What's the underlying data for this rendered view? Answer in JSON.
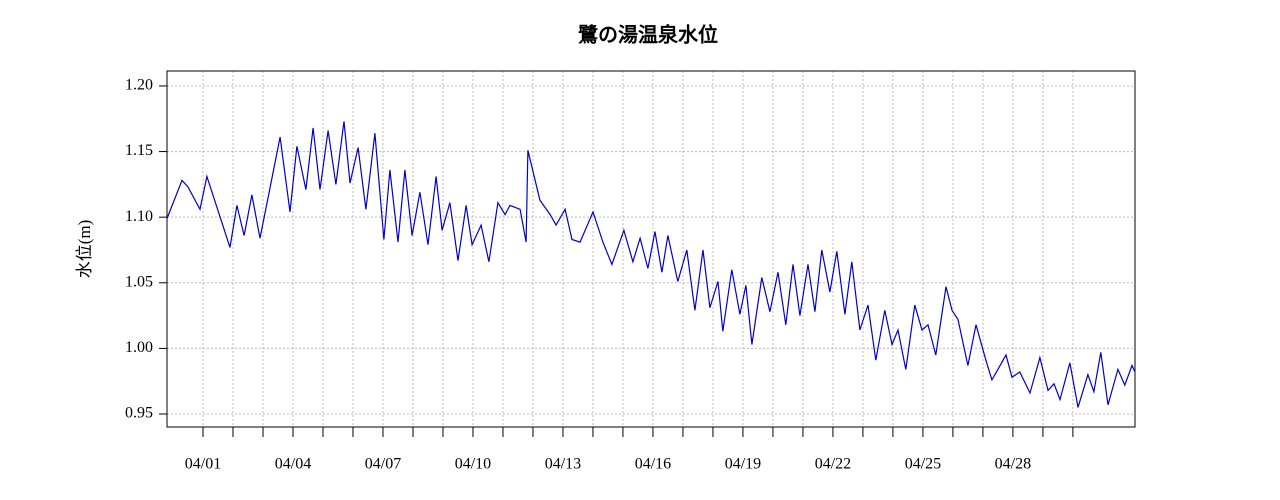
{
  "chart_data": {
    "type": "line",
    "title": "鷺の湯温泉水位",
    "ylabel": "水位(m)",
    "color": "#0000cc",
    "grid": true,
    "xlim": [
      -0.2,
      32.07
    ],
    "ylim": [
      0.9401,
      1.2114
    ],
    "xticks": [
      {
        "value": 1,
        "label": "04/01"
      },
      {
        "value": 4,
        "label": "04/04"
      },
      {
        "value": 7,
        "label": "04/07"
      },
      {
        "value": 10,
        "label": "04/10"
      },
      {
        "value": 13,
        "label": "04/13"
      },
      {
        "value": 16,
        "label": "04/16"
      },
      {
        "value": 19,
        "label": "04/19"
      },
      {
        "value": 22,
        "label": "04/22"
      },
      {
        "value": 25,
        "label": "04/25"
      },
      {
        "value": 28,
        "label": "04/28"
      }
    ],
    "xminorticks": [
      2,
      3,
      5,
      6,
      8,
      9,
      11,
      12,
      14,
      15,
      17,
      18,
      20,
      21,
      23,
      24,
      26,
      27,
      29,
      30
    ],
    "yticks": [
      0.95,
      {
        "value": 1,
        "label": "1.00"
      },
      1.05,
      {
        "value": 1.1,
        "label": "1.10"
      },
      1.15,
      {
        "value": 1.2,
        "label": "1.20"
      }
    ],
    "x": [
      -0.2,
      0.3,
      0.5,
      0.9,
      1.13,
      1.9,
      2.13,
      2.37,
      2.63,
      2.9,
      3.57,
      3.9,
      4.13,
      4.43,
      4.67,
      4.9,
      5.17,
      5.43,
      5.7,
      5.9,
      6.17,
      6.43,
      6.73,
      7.03,
      7.23,
      7.5,
      7.73,
      7.97,
      8.23,
      8.5,
      8.77,
      8.97,
      9.23,
      9.5,
      9.77,
      9.97,
      10.27,
      10.53,
      10.83,
      11.07,
      11.23,
      11.57,
      11.77,
      11.83,
      12.23,
      12.57,
      12.77,
      13.07,
      13.3,
      13.57,
      14.0,
      14.33,
      14.63,
      15.03,
      15.33,
      15.57,
      15.83,
      16.07,
      16.3,
      16.5,
      16.83,
      17.13,
      17.4,
      17.67,
      17.9,
      18.17,
      18.33,
      18.63,
      18.9,
      19.1,
      19.3,
      19.63,
      19.9,
      20.17,
      20.43,
      20.67,
      20.9,
      21.17,
      21.4,
      21.63,
      21.9,
      22.13,
      22.4,
      22.63,
      22.9,
      23.17,
      23.43,
      23.73,
      23.97,
      24.17,
      24.43,
      24.73,
      24.97,
      25.17,
      25.43,
      25.77,
      25.97,
      26.17,
      26.5,
      26.77,
      27.1,
      27.3,
      27.5,
      27.77,
      27.97,
      28.23,
      28.57,
      28.9,
      29.17,
      29.37,
      29.57,
      29.9,
      30.17,
      30.5,
      30.7,
      30.93,
      31.17,
      31.5,
      31.73,
      31.97,
      32.07
    ],
    "values": [
      1.099,
      1.128,
      1.123,
      1.106,
      1.131,
      1.077,
      1.109,
      1.086,
      1.117,
      1.084,
      1.161,
      1.104,
      1.154,
      1.121,
      1.168,
      1.121,
      1.166,
      1.125,
      1.173,
      1.126,
      1.153,
      1.106,
      1.164,
      1.083,
      1.136,
      1.081,
      1.136,
      1.086,
      1.119,
      1.079,
      1.131,
      1.09,
      1.111,
      1.067,
      1.109,
      1.079,
      1.094,
      1.066,
      1.111,
      1.102,
      1.109,
      1.106,
      1.081,
      1.151,
      1.113,
      1.102,
      1.094,
      1.106,
      1.083,
      1.081,
      1.104,
      1.081,
      1.064,
      1.09,
      1.066,
      1.084,
      1.061,
      1.089,
      1.058,
      1.086,
      1.051,
      1.075,
      1.029,
      1.075,
      1.031,
      1.051,
      1.013,
      1.06,
      1.026,
      1.048,
      1.003,
      1.054,
      1.028,
      1.058,
      1.018,
      1.064,
      1.025,
      1.064,
      1.028,
      1.075,
      1.043,
      1.074,
      1.026,
      1.066,
      1.014,
      1.033,
      0.991,
      1.029,
      1.003,
      1.014,
      0.984,
      1.033,
      1.014,
      1.018,
      0.995,
      1.047,
      1.029,
      1.022,
      0.987,
      1.018,
      0.991,
      0.976,
      0.984,
      0.995,
      0.978,
      0.982,
      0.966,
      0.993,
      0.968,
      0.973,
      0.961,
      0.989,
      0.955,
      0.98,
      0.967,
      0.997,
      0.957,
      0.984,
      0.972,
      0.987,
      0.982
    ]
  }
}
